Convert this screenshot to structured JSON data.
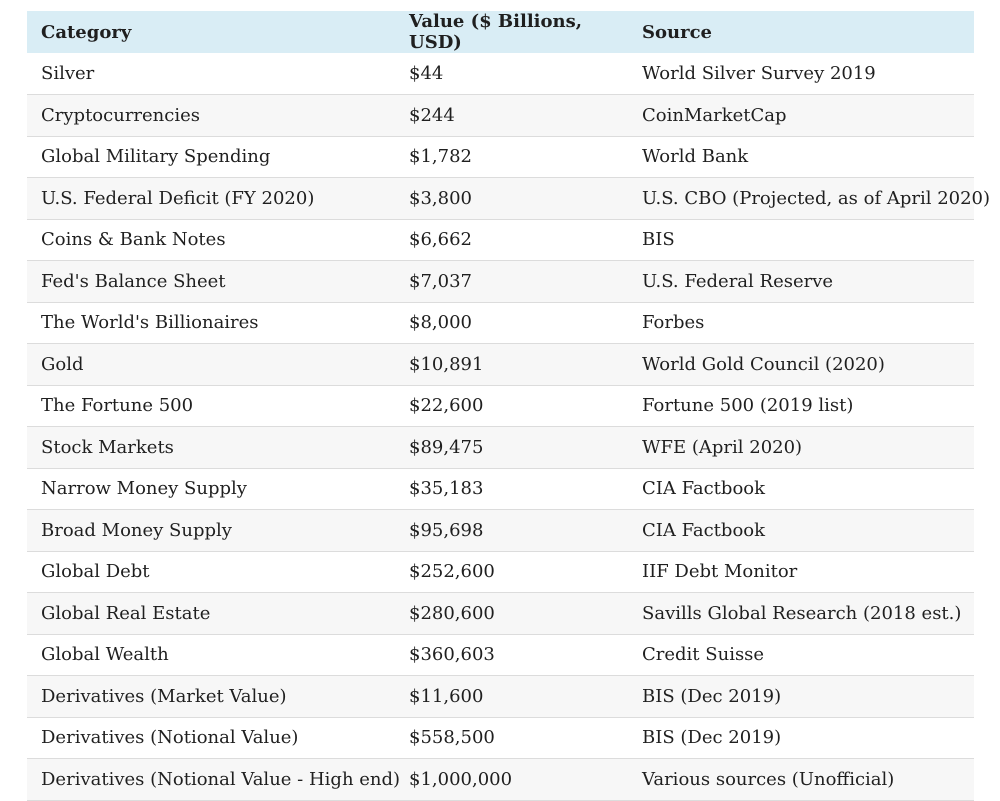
{
  "table": {
    "headers": [
      "Category",
      "Value ($ Billions, USD)",
      "Source"
    ],
    "rows": [
      [
        "Silver",
        "$44",
        "World Silver Survey 2019"
      ],
      [
        "Cryptocurrencies",
        "$244",
        "CoinMarketCap"
      ],
      [
        "Global Military Spending",
        "$1,782",
        "World Bank"
      ],
      [
        "U.S. Federal Deficit (FY 2020)",
        "$3,800",
        "U.S. CBO (Projected, as of April 2020)"
      ],
      [
        "Coins & Bank Notes",
        "$6,662",
        "BIS"
      ],
      [
        "Fed's Balance Sheet",
        "$7,037",
        "U.S. Federal Reserve"
      ],
      [
        "The World's Billionaires",
        "$8,000",
        "Forbes"
      ],
      [
        "Gold",
        "$10,891",
        "World Gold Council (2020)"
      ],
      [
        "The Fortune 500",
        "$22,600",
        "Fortune 500 (2019 list)"
      ],
      [
        "Stock Markets",
        "$89,475",
        "WFE (April 2020)"
      ],
      [
        "Narrow Money Supply",
        "$35,183",
        "CIA Factbook"
      ],
      [
        "Broad Money Supply",
        "$95,698",
        "CIA Factbook"
      ],
      [
        "Global Debt",
        "$252,600",
        "IIF Debt Monitor"
      ],
      [
        "Global Real Estate",
        "$280,600",
        "Savills Global Research (2018 est.)"
      ],
      [
        "Global Wealth",
        "$360,603",
        "Credit Suisse"
      ],
      [
        "Derivatives (Market Value)",
        "$11,600",
        "BIS (Dec 2019)"
      ],
      [
        "Derivatives (Notional Value)",
        "$558,500",
        "BIS (Dec 2019)"
      ],
      [
        "Derivatives (Notional Value - High end)",
        "$1,000,000",
        "Various sources (Unofficial)"
      ]
    ]
  }
}
